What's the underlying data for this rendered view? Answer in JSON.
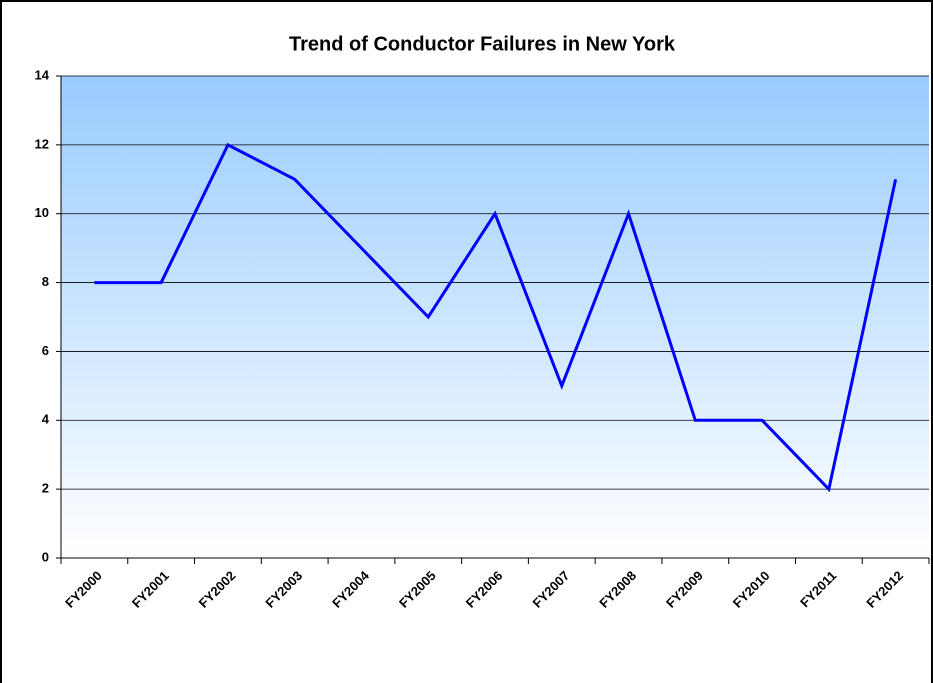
{
  "chart_data": {
    "type": "line",
    "title": "Trend of Conductor Failures in New York",
    "categories": [
      "FY2000",
      "FY2001",
      "FY2002",
      "FY2003",
      "FY2004",
      "FY2005",
      "FY2006",
      "FY2007",
      "FY2008",
      "FY2009",
      "FY2010",
      "FY2011",
      "FY2012"
    ],
    "values": [
      8,
      8,
      12,
      11,
      9,
      7,
      10,
      5,
      10,
      4,
      4,
      2,
      11
    ],
    "color": "#0000ff",
    "ylim": [
      0,
      14
    ],
    "yticks": [
      0,
      2,
      4,
      6,
      8,
      10,
      12,
      14
    ],
    "grid": true
  }
}
